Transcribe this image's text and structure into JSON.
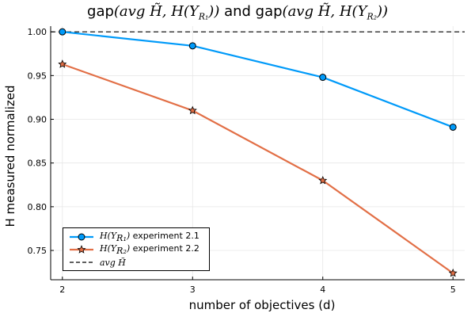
{
  "chart_data": {
    "type": "line",
    "title": {
      "prefix1": "gap",
      "math1": "(avg H̃, H(Y",
      "sub1": "R₁",
      "close1": "))",
      "joiner": " and gap",
      "math2": "(avg H̃, H(Y",
      "sub2": "R₂",
      "close2": "))"
    },
    "xlabel": "number of objectives (d)",
    "ylabel": "H measured normalized",
    "x": [
      2,
      3,
      4,
      5
    ],
    "xticks": [
      "2",
      "3",
      "4",
      "5"
    ],
    "xlim": [
      1.91,
      5.09
    ],
    "yticks": [
      "0.75",
      "0.80",
      "0.85",
      "0.90",
      "0.95",
      "1.00"
    ],
    "ylim": [
      0.7165,
      1.0065
    ],
    "grid": true,
    "legend_position": "bottom-left",
    "series": [
      {
        "legend_math": "H(Y",
        "legend_sub": "R₁",
        "legend_close": ")",
        "legend_text": " experiment 2.1",
        "color": "#009af9",
        "marker": "circle",
        "values": [
          1.0,
          0.984,
          0.948,
          0.891
        ]
      },
      {
        "legend_math": "H(Y",
        "legend_sub": "R₂",
        "legend_close": ")",
        "legend_text": " experiment 2.2",
        "color": "#e26f46",
        "marker": "star",
        "values": [
          0.963,
          0.91,
          0.83,
          0.724
        ]
      }
    ],
    "reference_line": {
      "legend_math": "avg H̃",
      "color": "#000000",
      "style": "dashed",
      "value": 1.0
    }
  }
}
